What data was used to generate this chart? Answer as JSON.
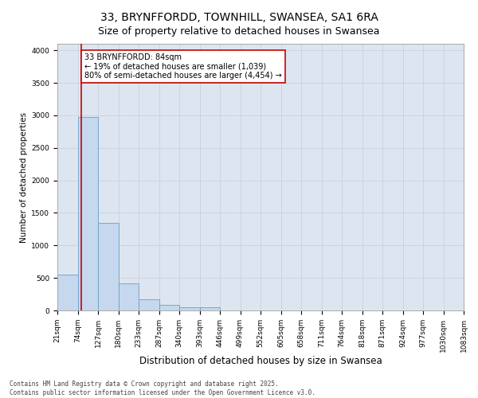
{
  "title": "33, BRYNFFORDD, TOWNHILL, SWANSEA, SA1 6RA",
  "subtitle": "Size of property relative to detached houses in Swansea",
  "xlabel": "Distribution of detached houses by size in Swansea",
  "ylabel": "Number of detached properties",
  "bins": [
    "21sqm",
    "74sqm",
    "127sqm",
    "180sqm",
    "233sqm",
    "287sqm",
    "340sqm",
    "393sqm",
    "446sqm",
    "499sqm",
    "552sqm",
    "605sqm",
    "658sqm",
    "711sqm",
    "764sqm",
    "818sqm",
    "871sqm",
    "924sqm",
    "977sqm",
    "1030sqm",
    "1083sqm"
  ],
  "bar_values": [
    550,
    2970,
    1350,
    420,
    170,
    90,
    55,
    50,
    0,
    0,
    0,
    0,
    0,
    0,
    0,
    0,
    0,
    0,
    0,
    0
  ],
  "bar_color": "#c5d8ee",
  "bar_edge_color": "#6b9fc8",
  "grid_color": "#c8d0dc",
  "bg_color": "#dde6f0",
  "property_line_color": "#cc0000",
  "annotation_text": "33 BRYNFFORDD: 84sqm\n← 19% of detached houses are smaller (1,039)\n80% of semi-detached houses are larger (4,454) →",
  "annotation_box_color": "#cc0000",
  "ylim": [
    0,
    4100
  ],
  "yticks": [
    0,
    500,
    1000,
    1500,
    2000,
    2500,
    3000,
    3500,
    4000
  ],
  "footer": "Contains HM Land Registry data © Crown copyright and database right 2025.\nContains public sector information licensed under the Open Government Licence v3.0.",
  "title_fontsize": 10,
  "xlabel_fontsize": 8.5,
  "ylabel_fontsize": 7.5,
  "tick_fontsize": 6.5,
  "annotation_fontsize": 7,
  "footer_fontsize": 5.5
}
